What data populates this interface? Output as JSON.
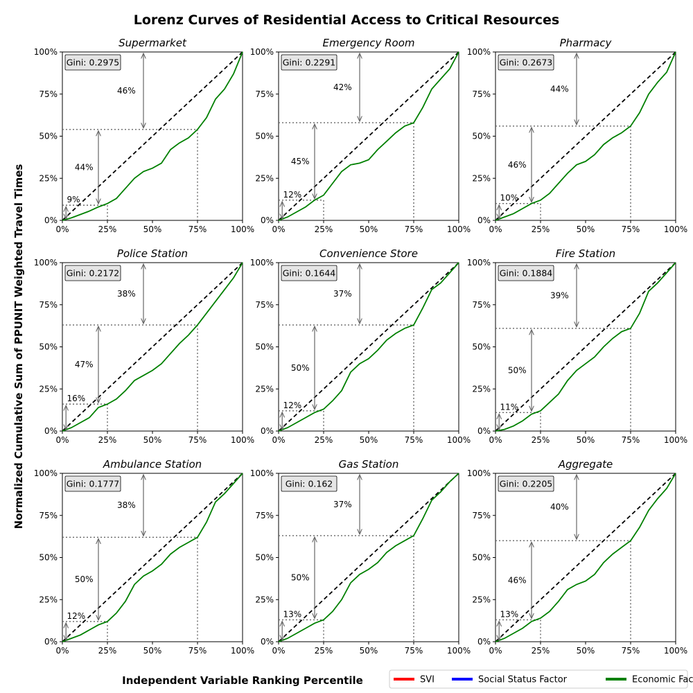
{
  "figure": {
    "title": "Lorenz Curves of Residential Access to Critical Resources",
    "xlabel": "Independent Variable Ranking Percentile",
    "ylabel": "Normalized Cumulative Sum of PPUNIT Weighted Travel Times",
    "legend": {
      "placement": "bottom-right",
      "entries": [
        {
          "label": "SVI",
          "color": "#ff0000"
        },
        {
          "label": "Social Status Factor",
          "color": "#0000ff"
        },
        {
          "label": "Economic  Factor",
          "color": "#008000"
        }
      ]
    },
    "colors": {
      "curve": "#008000",
      "equality": "#000000",
      "annotation": "#666666",
      "gini_box": "#e5e5e5"
    }
  },
  "chart_data": [
    {
      "type": "line",
      "title": "Supermarket",
      "gini_label": "Gini: 0.2975",
      "xlim": [
        0,
        1
      ],
      "ylim": [
        0,
        1
      ],
      "x_ticks": [
        "0%",
        "25%",
        "50%",
        "75%",
        "100%"
      ],
      "y_ticks": [
        "0%",
        "25%",
        "50%",
        "75%",
        "100%"
      ],
      "x": [
        0,
        0.05,
        0.1,
        0.15,
        0.2,
        0.25,
        0.3,
        0.35,
        0.4,
        0.45,
        0.5,
        0.55,
        0.6,
        0.65,
        0.7,
        0.75,
        0.8,
        0.85,
        0.9,
        0.95,
        1.0
      ],
      "y": [
        0,
        0.015,
        0.035,
        0.055,
        0.08,
        0.1,
        0.13,
        0.19,
        0.25,
        0.29,
        0.31,
        0.34,
        0.42,
        0.46,
        0.49,
        0.54,
        0.61,
        0.72,
        0.78,
        0.87,
        1.0
      ],
      "p20": 0.09,
      "p75": 0.54,
      "annotations": {
        "bottom": "9%",
        "middle": "44%",
        "top": "46%"
      }
    },
    {
      "type": "line",
      "title": "Emergency Room",
      "gini_label": "Gini: 0.2291",
      "xlim": [
        0,
        1
      ],
      "ylim": [
        0,
        1
      ],
      "x_ticks": [
        "0%",
        "25%",
        "50%",
        "75%",
        "100%"
      ],
      "y_ticks": [
        "0%",
        "25%",
        "50%",
        "75%",
        "100%"
      ],
      "x": [
        0,
        0.05,
        0.1,
        0.15,
        0.2,
        0.25,
        0.3,
        0.35,
        0.4,
        0.45,
        0.5,
        0.55,
        0.6,
        0.65,
        0.7,
        0.75,
        0.8,
        0.85,
        0.9,
        0.95,
        1.0
      ],
      "y": [
        0,
        0.02,
        0.05,
        0.08,
        0.12,
        0.15,
        0.22,
        0.29,
        0.33,
        0.34,
        0.36,
        0.42,
        0.47,
        0.52,
        0.56,
        0.58,
        0.67,
        0.78,
        0.84,
        0.9,
        1.0
      ],
      "p20": 0.12,
      "p75": 0.58,
      "annotations": {
        "bottom": "12%",
        "middle": "45%",
        "top": "42%"
      }
    },
    {
      "type": "line",
      "title": "Pharmacy",
      "gini_label": "Gini: 0.2673",
      "xlim": [
        0,
        1
      ],
      "ylim": [
        0,
        1
      ],
      "x_ticks": [
        "0%",
        "25%",
        "50%",
        "75%",
        "100%"
      ],
      "y_ticks": [
        "0%",
        "25%",
        "50%",
        "75%",
        "100%"
      ],
      "x": [
        0,
        0.05,
        0.1,
        0.15,
        0.2,
        0.25,
        0.3,
        0.35,
        0.4,
        0.45,
        0.5,
        0.55,
        0.6,
        0.65,
        0.7,
        0.75,
        0.8,
        0.85,
        0.9,
        0.95,
        1.0
      ],
      "y": [
        0,
        0.02,
        0.04,
        0.07,
        0.1,
        0.12,
        0.16,
        0.22,
        0.28,
        0.33,
        0.35,
        0.39,
        0.45,
        0.49,
        0.52,
        0.56,
        0.64,
        0.75,
        0.82,
        0.88,
        1.0
      ],
      "p20": 0.1,
      "p75": 0.56,
      "annotations": {
        "bottom": "10%",
        "middle": "46%",
        "top": "44%"
      }
    },
    {
      "type": "line",
      "title": "Police Station",
      "gini_label": "Gini: 0.2172",
      "xlim": [
        0,
        1
      ],
      "ylim": [
        0,
        1
      ],
      "x_ticks": [
        "0%",
        "25%",
        "50%",
        "75%",
        "100%"
      ],
      "y_ticks": [
        "0%",
        "25%",
        "50%",
        "75%",
        "100%"
      ],
      "x": [
        0,
        0.05,
        0.1,
        0.15,
        0.2,
        0.25,
        0.3,
        0.35,
        0.4,
        0.45,
        0.5,
        0.55,
        0.6,
        0.65,
        0.7,
        0.75,
        0.8,
        0.85,
        0.9,
        0.95,
        1.0
      ],
      "y": [
        0,
        0.02,
        0.05,
        0.08,
        0.14,
        0.16,
        0.19,
        0.24,
        0.3,
        0.33,
        0.36,
        0.4,
        0.46,
        0.52,
        0.57,
        0.63,
        0.7,
        0.77,
        0.84,
        0.91,
        1.0
      ],
      "p20": 0.16,
      "p75": 0.63,
      "annotations": {
        "bottom": "16%",
        "middle": "47%",
        "top": "38%"
      }
    },
    {
      "type": "line",
      "title": "Convenience Store",
      "gini_label": "Gini: 0.1644",
      "xlim": [
        0,
        1
      ],
      "ylim": [
        0,
        1
      ],
      "x_ticks": [
        "0%",
        "25%",
        "50%",
        "75%",
        "100%"
      ],
      "y_ticks": [
        "0%",
        "25%",
        "50%",
        "75%",
        "100%"
      ],
      "x": [
        0,
        0.05,
        0.1,
        0.15,
        0.2,
        0.25,
        0.3,
        0.35,
        0.4,
        0.45,
        0.5,
        0.55,
        0.6,
        0.65,
        0.7,
        0.75,
        0.8,
        0.85,
        0.9,
        0.95,
        1.0
      ],
      "y": [
        0,
        0.02,
        0.05,
        0.08,
        0.11,
        0.13,
        0.18,
        0.24,
        0.35,
        0.4,
        0.43,
        0.48,
        0.54,
        0.58,
        0.61,
        0.63,
        0.73,
        0.84,
        0.88,
        0.94,
        1.0
      ],
      "p20": 0.12,
      "p75": 0.63,
      "annotations": {
        "bottom": "12%",
        "middle": "50%",
        "top": "37%"
      }
    },
    {
      "type": "line",
      "title": "Fire Station",
      "gini_label": "Gini: 0.1884",
      "xlim": [
        0,
        1
      ],
      "ylim": [
        0,
        1
      ],
      "x_ticks": [
        "0%",
        "25%",
        "50%",
        "75%",
        "100%"
      ],
      "y_ticks": [
        "0%",
        "25%",
        "50%",
        "75%",
        "100%"
      ],
      "x": [
        0,
        0.05,
        0.1,
        0.15,
        0.2,
        0.25,
        0.3,
        0.35,
        0.4,
        0.45,
        0.5,
        0.55,
        0.6,
        0.65,
        0.7,
        0.75,
        0.8,
        0.85,
        0.9,
        0.95,
        1.0
      ],
      "y": [
        0,
        0.01,
        0.03,
        0.06,
        0.1,
        0.12,
        0.17,
        0.22,
        0.3,
        0.36,
        0.4,
        0.44,
        0.5,
        0.55,
        0.59,
        0.61,
        0.7,
        0.83,
        0.88,
        0.94,
        1.0
      ],
      "p20": 0.11,
      "p75": 0.61,
      "annotations": {
        "bottom": "11%",
        "middle": "50%",
        "top": "39%"
      }
    },
    {
      "type": "line",
      "title": "Ambulance Station",
      "gini_label": "Gini: 0.1777",
      "xlim": [
        0,
        1
      ],
      "ylim": [
        0,
        1
      ],
      "x_ticks": [
        "0%",
        "25%",
        "50%",
        "75%",
        "100%"
      ],
      "y_ticks": [
        "0%",
        "25%",
        "50%",
        "75%",
        "100%"
      ],
      "x": [
        0,
        0.05,
        0.1,
        0.15,
        0.2,
        0.25,
        0.3,
        0.35,
        0.4,
        0.45,
        0.5,
        0.55,
        0.6,
        0.65,
        0.7,
        0.75,
        0.8,
        0.85,
        0.9,
        0.95,
        1.0
      ],
      "y": [
        0,
        0.02,
        0.04,
        0.07,
        0.1,
        0.12,
        0.17,
        0.24,
        0.34,
        0.39,
        0.42,
        0.46,
        0.52,
        0.56,
        0.59,
        0.62,
        0.71,
        0.83,
        0.88,
        0.94,
        1.0
      ],
      "p20": 0.12,
      "p75": 0.62,
      "annotations": {
        "bottom": "12%",
        "middle": "50%",
        "top": "38%"
      }
    },
    {
      "type": "line",
      "title": "Gas Station",
      "gini_label": "Gini: 0.162",
      "xlim": [
        0,
        1
      ],
      "ylim": [
        0,
        1
      ],
      "x_ticks": [
        "0%",
        "25%",
        "50%",
        "75%",
        "100%"
      ],
      "y_ticks": [
        "0%",
        "25%",
        "50%",
        "75%",
        "100%"
      ],
      "x": [
        0,
        0.05,
        0.1,
        0.15,
        0.2,
        0.25,
        0.3,
        0.35,
        0.4,
        0.45,
        0.5,
        0.55,
        0.6,
        0.65,
        0.7,
        0.75,
        0.8,
        0.85,
        0.9,
        0.95,
        1.0
      ],
      "y": [
        0,
        0.02,
        0.05,
        0.08,
        0.11,
        0.13,
        0.18,
        0.25,
        0.35,
        0.4,
        0.43,
        0.47,
        0.53,
        0.57,
        0.6,
        0.63,
        0.73,
        0.84,
        0.89,
        0.95,
        1.0
      ],
      "p20": 0.13,
      "p75": 0.63,
      "annotations": {
        "bottom": "13%",
        "middle": "50%",
        "top": "37%"
      }
    },
    {
      "type": "line",
      "title": "Aggregate",
      "gini_label": "Gini: 0.2205",
      "xlim": [
        0,
        1
      ],
      "ylim": [
        0,
        1
      ],
      "x_ticks": [
        "0%",
        "25%",
        "50%",
        "75%",
        "100%"
      ],
      "y_ticks": [
        "0%",
        "25%",
        "50%",
        "75%",
        "100%"
      ],
      "x": [
        0,
        0.05,
        0.1,
        0.15,
        0.2,
        0.25,
        0.3,
        0.35,
        0.4,
        0.45,
        0.5,
        0.55,
        0.6,
        0.65,
        0.7,
        0.75,
        0.8,
        0.85,
        0.9,
        0.95,
        1.0
      ],
      "y": [
        0,
        0.02,
        0.05,
        0.08,
        0.12,
        0.14,
        0.18,
        0.24,
        0.31,
        0.34,
        0.36,
        0.4,
        0.47,
        0.52,
        0.56,
        0.6,
        0.68,
        0.78,
        0.85,
        0.91,
        1.0
      ],
      "p20": 0.13,
      "p75": 0.6,
      "annotations": {
        "bottom": "13%",
        "middle": "46%",
        "top": "40%"
      }
    }
  ]
}
